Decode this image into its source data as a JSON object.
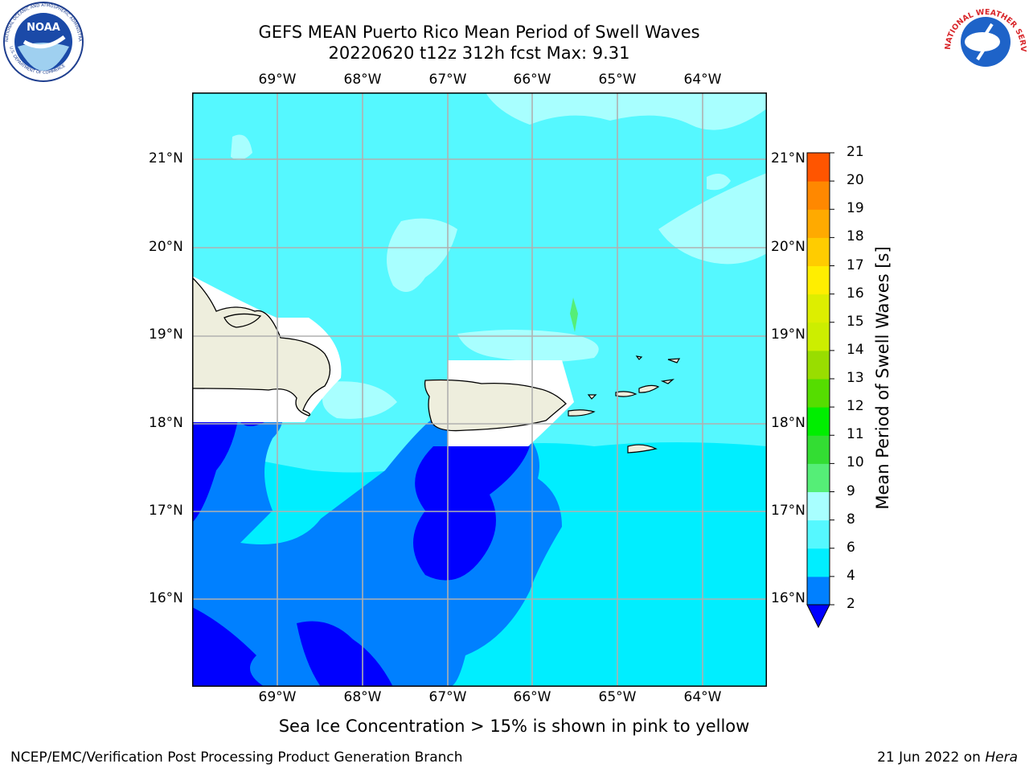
{
  "title": {
    "line1": "GEFS MEAN Puerto Rico Mean Period of Swell Waves",
    "line2": "20220620 t12z 312h fcst   Max: 9.31"
  },
  "map": {
    "lon_labels": [
      "69°W",
      "68°W",
      "67°W",
      "66°W",
      "65°W",
      "64°W"
    ],
    "lat_labels": [
      "21°N",
      "20°N",
      "19°N",
      "18°N",
      "17°N",
      "16°N"
    ],
    "land_color": "#eeeedd",
    "grid_color": "#b0b0b0"
  },
  "colorbar": {
    "label": "Mean Period of Swell Waves [s]",
    "ticks": [
      "2",
      "4",
      "6",
      "8",
      "9",
      "10",
      "11",
      "12",
      "13",
      "14",
      "15",
      "16",
      "17",
      "18",
      "19",
      "20",
      "21"
    ],
    "colors": [
      "#0080ff",
      "#00eeff",
      "#55f8ff",
      "#a8ffff",
      "#55ee77",
      "#33dd33",
      "#00ee00",
      "#55dd00",
      "#99dd00",
      "#ccee00",
      "#ddee00",
      "#ffee00",
      "#ffcc00",
      "#ffaa00",
      "#ff8800",
      "#ff5500",
      "#ff2200",
      "#ff0000"
    ],
    "extend_low_color": "#0000ff"
  },
  "subtitle": "Sea Ice Concentration > 15% is shown in pink to yellow",
  "footer": {
    "left": "NCEP/EMC/Verification Post Processing Product Generation Branch",
    "right_date": "21 Jun 2022 on ",
    "right_machine": "Hera"
  },
  "logos": {
    "noaa_text": "NOAA",
    "noaa_ring_top": "NATIONAL OCEANIC AND ATMOSPHERIC ADMINISTRATION",
    "noaa_ring_bottom": "U.S. DEPARTMENT OF COMMERCE",
    "nws_ring": "NATIONAL WEATHER SERVICE"
  }
}
